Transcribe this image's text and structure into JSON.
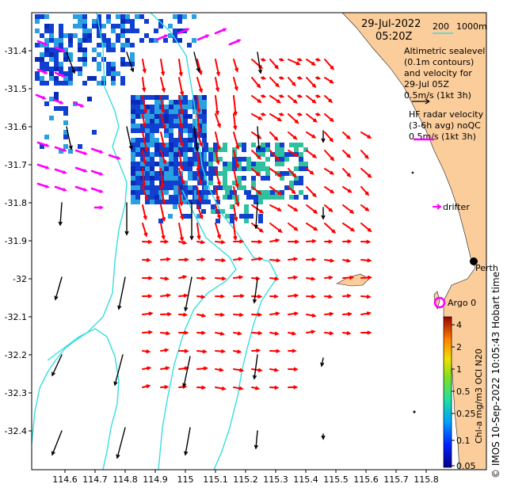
{
  "header": {
    "date": "29-Jul-2022",
    "time": "05:20Z"
  },
  "bathymetry_scale": {
    "contour_200": "200",
    "contour_1000": "1000m"
  },
  "legend": {
    "altimetry_lines": [
      "Altimetric sealevel",
      "(0.1m contours)",
      "and velocity for",
      "29-Jul 05Z",
      "0.5m/s (1kt 3h)"
    ],
    "hf_radar_lines": [
      "HF radar velocity",
      "(3-6h avg) noQC",
      "0.5m/s (1kt 3h)"
    ],
    "drifter_label": "drifter",
    "argo_label": "Argo 0",
    "city_label": "Perth"
  },
  "colorbar": {
    "title": "Chl-a mg/m3 OCI N20",
    "tick_labels": [
      "4",
      "2",
      "1",
      "0.5",
      "0.25",
      "0.1",
      "0.05"
    ]
  },
  "credit": "© IMOS 10-Sep-2022 10:05:43 Hobart time",
  "axes": {
    "x_ticks": [
      "114.6",
      "114.7",
      "114.8",
      "114.9",
      "115",
      "115.1",
      "115.2",
      "115.3",
      "115.4",
      "115.5",
      "115.6",
      "115.7",
      "115.8"
    ],
    "y_ticks": [
      "-31.4",
      "-31.5",
      "-31.6",
      "-31.7",
      "-31.8",
      "-31.9",
      "-32",
      "-32.1",
      "-32.2",
      "-32.3",
      "-32.4"
    ],
    "lon_range": [
      114.52,
      115.87
    ],
    "lat_range": [
      -32.49,
      -31.33
    ]
  },
  "colors": {
    "land": "#fbcd9b",
    "contour": "#37dde0",
    "hf_vector": "#ff0000",
    "altimetry_vector": "#000000",
    "drifter": "#ff00ff",
    "argo": "#ff00ff",
    "chl_low": "#1040d0",
    "chl_mid": "#2aa0e0",
    "chl_high": "#30c0a0"
  }
}
